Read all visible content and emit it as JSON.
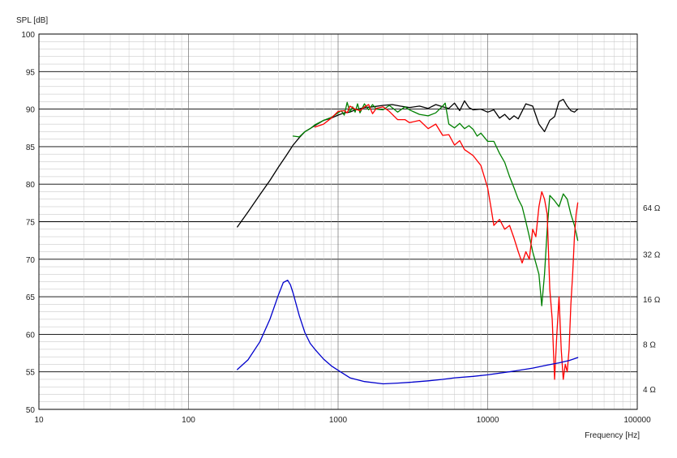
{
  "chart_data": {
    "type": "line",
    "title": "",
    "ylabel": "SPL [dB]",
    "xlabel": "Frequency [Hz]",
    "xscale": "log",
    "xlim": [
      10,
      100000
    ],
    "ylim": [
      50,
      100
    ],
    "x_ticks": [
      10,
      100,
      1000,
      10000,
      100000
    ],
    "x_tick_labels": [
      "10",
      "100",
      "1000",
      "10000",
      "100000"
    ],
    "y_ticks": [
      50,
      55,
      60,
      65,
      70,
      75,
      80,
      85,
      90,
      95,
      100
    ],
    "y_tick_labels": [
      "50",
      "55",
      "60",
      "65",
      "70",
      "75",
      "80",
      "85",
      "90",
      "95",
      "100"
    ],
    "impedance_axis": {
      "position": "right",
      "labels": [
        {
          "text": "64 Ω",
          "spl": 76.9
        },
        {
          "text": "32 Ω",
          "spl": 70.7
        },
        {
          "text": "16 Ω",
          "spl": 64.7
        },
        {
          "text": "8 Ω",
          "spl": 58.7
        },
        {
          "text": "4 Ω",
          "spl": 52.7
        }
      ]
    },
    "grid": true,
    "legend": "none",
    "series": [
      {
        "color": "#000000",
        "x": [
          212,
          250,
          300,
          350,
          400,
          450,
          500,
          550,
          600,
          700,
          800,
          900,
          1000,
          1100,
          1200,
          1300,
          1500,
          1700,
          2000,
          2300,
          2600,
          3000,
          3500,
          4000,
          4500,
          5000,
          5500,
          6000,
          6500,
          7000,
          7500,
          8000,
          9000,
          10000,
          11000,
          12000,
          13000,
          14000,
          15000,
          16000,
          18000,
          20000,
          22000,
          24000,
          26000,
          28000,
          30000,
          32000,
          34000,
          36000,
          38000,
          40000
        ],
        "y": [
          74.3,
          76.3,
          78.6,
          80.5,
          82.3,
          83.8,
          85.2,
          86.2,
          87.0,
          87.8,
          88.5,
          88.8,
          89.2,
          89.5,
          89.6,
          89.9,
          90.2,
          90.3,
          90.5,
          90.6,
          90.4,
          90.2,
          90.4,
          90.1,
          90.6,
          90.3,
          90.1,
          90.8,
          89.8,
          91.1,
          90.2,
          89.9,
          90.0,
          89.6,
          89.9,
          88.8,
          89.3,
          88.6,
          89.1,
          88.7,
          90.7,
          90.4,
          88.0,
          87.0,
          88.5,
          89.0,
          91.0,
          91.3,
          90.4,
          89.8,
          89.6,
          90.0
        ]
      },
      {
        "color": "#008000",
        "x": [
          500,
          550,
          600,
          650,
          700,
          800,
          900,
          1000,
          1050,
          1100,
          1150,
          1200,
          1250,
          1300,
          1350,
          1400,
          1500,
          1600,
          1700,
          1800,
          2000,
          2200,
          2500,
          2800,
          3000,
          3500,
          4000,
          4500,
          5000,
          5200,
          5500,
          6000,
          6500,
          7000,
          7500,
          8000,
          8500,
          9000,
          10000,
          11000,
          12000,
          13000,
          14000,
          15000,
          16000,
          17000,
          18000,
          19000,
          20000,
          21000,
          22000,
          23000,
          24000,
          25000,
          26000,
          28000,
          30000,
          32000,
          34000,
          36000,
          38000,
          40000
        ],
        "y": [
          86.4,
          86.3,
          87.0,
          87.4,
          87.9,
          88.5,
          88.9,
          89.5,
          89.8,
          89.2,
          90.9,
          89.6,
          90.3,
          89.6,
          90.7,
          89.5,
          90.7,
          89.9,
          90.6,
          90.0,
          89.9,
          90.5,
          89.6,
          90.3,
          89.9,
          89.3,
          89.1,
          89.5,
          90.4,
          90.8,
          88.0,
          87.5,
          88.1,
          87.4,
          87.8,
          87.3,
          86.4,
          86.8,
          85.7,
          85.7,
          84.1,
          82.9,
          81.0,
          79.5,
          78.0,
          77.0,
          75.0,
          73.0,
          71.0,
          69.5,
          68.0,
          63.8,
          68.0,
          74.0,
          78.5,
          77.8,
          77.0,
          78.7,
          78.0,
          76.0,
          74.5,
          72.5
        ]
      },
      {
        "color": "#ff0000",
        "x": [
          700,
          800,
          900,
          1000,
          1100,
          1150,
          1200,
          1300,
          1400,
          1500,
          1600,
          1700,
          1800,
          2000,
          2200,
          2500,
          2800,
          3000,
          3500,
          4000,
          4500,
          5000,
          5500,
          6000,
          6500,
          7000,
          7500,
          8000,
          9000,
          10000,
          10500,
          11000,
          12000,
          13000,
          14000,
          15000,
          16000,
          17000,
          18000,
          19000,
          20000,
          21000,
          22000,
          23000,
          24000,
          25000,
          26000,
          27000,
          28000,
          29000,
          30000,
          31000,
          32000,
          33000,
          34000,
          35000,
          36000,
          37000,
          38000,
          39000,
          40000
        ],
        "y": [
          87.6,
          88.0,
          88.8,
          89.7,
          89.8,
          89.5,
          90.4,
          90.0,
          89.8,
          90.3,
          90.6,
          89.4,
          90.1,
          90.3,
          89.7,
          88.6,
          88.6,
          88.2,
          88.5,
          87.4,
          88.0,
          86.5,
          86.6,
          85.2,
          85.8,
          84.6,
          84.2,
          83.8,
          82.5,
          79.5,
          77.0,
          74.5,
          75.3,
          74.0,
          74.5,
          72.8,
          71.0,
          69.5,
          71.0,
          70.0,
          74.0,
          73.0,
          77.0,
          79.0,
          78.0,
          76.0,
          66.0,
          62.0,
          54.0,
          60.0,
          65.0,
          58.0,
          54.0,
          56.0,
          55.0,
          58.0,
          64.0,
          68.0,
          73.0,
          76.0,
          77.5
        ]
      },
      {
        "color": "#0000cc",
        "x": [
          212,
          250,
          300,
          350,
          400,
          430,
          460,
          480,
          500,
          550,
          600,
          650,
          700,
          800,
          900,
          1000,
          1200,
          1500,
          2000,
          2500,
          3000,
          4000,
          5000,
          6000,
          8000,
          10000,
          15000,
          20000,
          25000,
          30000,
          35000,
          40000
        ],
        "y": [
          55.3,
          56.6,
          59.0,
          62.0,
          65.3,
          66.9,
          67.2,
          66.6,
          65.5,
          62.5,
          60.2,
          58.8,
          58.0,
          56.7,
          55.8,
          55.2,
          54.2,
          53.7,
          53.4,
          53.5,
          53.6,
          53.8,
          54.0,
          54.2,
          54.4,
          54.6,
          55.1,
          55.5,
          55.9,
          56.2,
          56.5,
          56.9
        ]
      }
    ]
  }
}
